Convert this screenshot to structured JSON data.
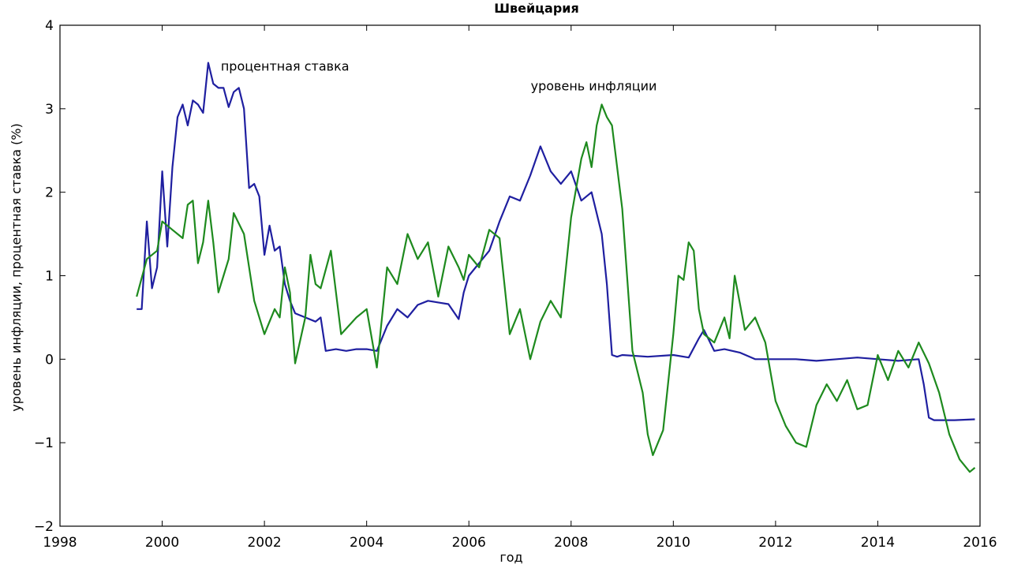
{
  "chart_data": {
    "type": "line",
    "title": "Швейцария",
    "xlabel": "год",
    "ylabel": "уровень инфляции, процентная ставка (%)",
    "xlim": [
      1998,
      2016
    ],
    "ylim": [
      -2,
      4
    ],
    "xticks": [
      1998,
      2000,
      2002,
      2004,
      2006,
      2008,
      2010,
      2012,
      2014,
      2016
    ],
    "yticks": [
      -2,
      -1,
      0,
      1,
      2,
      3,
      4
    ],
    "grid": false,
    "annotations": [
      {
        "text": "процентная ставка",
        "series": 0
      },
      {
        "text": "уровень инфляции",
        "series": 1
      }
    ],
    "series": [
      {
        "name": "процентная ставка",
        "color": "#1f1fa0",
        "x": [
          1999.5,
          1999.6,
          1999.7,
          1999.8,
          1999.9,
          2000.0,
          2000.1,
          2000.2,
          2000.3,
          2000.4,
          2000.5,
          2000.6,
          2000.7,
          2000.8,
          2000.9,
          2001.0,
          2001.1,
          2001.2,
          2001.3,
          2001.4,
          2001.5,
          2001.6,
          2001.7,
          2001.8,
          2001.9,
          2002.0,
          2002.1,
          2002.2,
          2002.3,
          2002.4,
          2002.5,
          2002.6,
          2002.8,
          2003.0,
          2003.1,
          2003.2,
          2003.4,
          2003.6,
          2003.8,
          2004.0,
          2004.2,
          2004.4,
          2004.6,
          2004.8,
          2005.0,
          2005.2,
          2005.4,
          2005.6,
          2005.8,
          2005.9,
          2006.0,
          2006.2,
          2006.4,
          2006.6,
          2006.8,
          2007.0,
          2007.2,
          2007.4,
          2007.6,
          2007.8,
          2008.0,
          2008.2,
          2008.4,
          2008.6,
          2008.7,
          2008.8,
          2008.9,
          2009.0,
          2009.5,
          2010.0,
          2010.3,
          2010.5,
          2010.6,
          2010.8,
          2011.0,
          2011.3,
          2011.6,
          2012.0,
          2012.4,
          2012.8,
          2013.2,
          2013.6,
          2014.0,
          2014.4,
          2014.8,
          2014.9,
          2015.0,
          2015.1,
          2015.5,
          2015.9
        ],
        "values": [
          0.6,
          0.6,
          1.65,
          0.85,
          1.1,
          2.25,
          1.35,
          2.3,
          2.9,
          3.05,
          2.8,
          3.1,
          3.05,
          2.95,
          3.55,
          3.3,
          3.25,
          3.25,
          3.02,
          3.2,
          3.25,
          3.0,
          2.05,
          2.1,
          1.95,
          1.25,
          1.6,
          1.3,
          1.35,
          0.9,
          0.7,
          0.55,
          0.5,
          0.45,
          0.5,
          0.1,
          0.12,
          0.1,
          0.12,
          0.12,
          0.1,
          0.4,
          0.6,
          0.5,
          0.65,
          0.7,
          0.68,
          0.66,
          0.48,
          0.8,
          1.0,
          1.15,
          1.3,
          1.65,
          1.95,
          1.9,
          2.2,
          2.55,
          2.25,
          2.1,
          2.25,
          1.9,
          2.0,
          1.5,
          0.9,
          0.05,
          0.03,
          0.05,
          0.03,
          0.05,
          0.02,
          0.25,
          0.35,
          0.1,
          0.12,
          0.08,
          0.0,
          0.0,
          0.0,
          -0.02,
          0.0,
          0.02,
          0.0,
          -0.02,
          0.0,
          -0.3,
          -0.7,
          -0.73,
          -0.73,
          -0.72
        ]
      },
      {
        "name": "уровень инфляции",
        "color": "#1e8a1e",
        "x": [
          1999.5,
          1999.7,
          1999.9,
          2000.0,
          2000.2,
          2000.4,
          2000.5,
          2000.6,
          2000.7,
          2000.8,
          2000.9,
          2001.0,
          2001.1,
          2001.2,
          2001.3,
          2001.4,
          2001.6,
          2001.8,
          2002.0,
          2002.2,
          2002.3,
          2002.4,
          2002.5,
          2002.6,
          2002.8,
          2002.9,
          2003.0,
          2003.1,
          2003.3,
          2003.5,
          2003.8,
          2004.0,
          2004.2,
          2004.4,
          2004.6,
          2004.8,
          2005.0,
          2005.2,
          2005.4,
          2005.6,
          2005.8,
          2005.9,
          2006.0,
          2006.2,
          2006.4,
          2006.6,
          2006.8,
          2007.0,
          2007.2,
          2007.4,
          2007.6,
          2007.8,
          2008.0,
          2008.2,
          2008.3,
          2008.4,
          2008.5,
          2008.6,
          2008.7,
          2008.8,
          2009.0,
          2009.2,
          2009.4,
          2009.5,
          2009.6,
          2009.8,
          2010.0,
          2010.1,
          2010.2,
          2010.3,
          2010.4,
          2010.5,
          2010.6,
          2010.8,
          2011.0,
          2011.1,
          2011.2,
          2011.4,
          2011.6,
          2011.8,
          2012.0,
          2012.2,
          2012.4,
          2012.6,
          2012.8,
          2013.0,
          2013.2,
          2013.4,
          2013.6,
          2013.8,
          2014.0,
          2014.2,
          2014.4,
          2014.6,
          2014.8,
          2015.0,
          2015.2,
          2015.4,
          2015.6,
          2015.8,
          2015.9
        ],
        "values": [
          0.75,
          1.2,
          1.3,
          1.65,
          1.55,
          1.45,
          1.85,
          1.9,
          1.15,
          1.4,
          1.9,
          1.4,
          0.8,
          1.0,
          1.2,
          1.75,
          1.5,
          0.7,
          0.3,
          0.6,
          0.5,
          1.1,
          0.8,
          -0.05,
          0.5,
          1.25,
          0.9,
          0.85,
          1.3,
          0.3,
          0.5,
          0.6,
          -0.1,
          1.1,
          0.9,
          1.5,
          1.2,
          1.4,
          0.75,
          1.35,
          1.1,
          0.95,
          1.25,
          1.1,
          1.55,
          1.45,
          0.3,
          0.6,
          0.0,
          0.45,
          0.7,
          0.5,
          1.7,
          2.4,
          2.6,
          2.3,
          2.8,
          3.05,
          2.9,
          2.8,
          1.8,
          0.1,
          -0.4,
          -0.9,
          -1.15,
          -0.85,
          0.3,
          1.0,
          0.95,
          1.4,
          1.3,
          0.6,
          0.3,
          0.2,
          0.5,
          0.25,
          1.0,
          0.35,
          0.5,
          0.2,
          -0.5,
          -0.8,
          -1.0,
          -1.05,
          -0.55,
          -0.3,
          -0.5,
          -0.25,
          -0.6,
          -0.55,
          0.05,
          -0.25,
          0.1,
          -0.1,
          0.2,
          -0.05,
          -0.4,
          -0.9,
          -1.2,
          -1.35,
          -1.3
        ]
      }
    ]
  }
}
